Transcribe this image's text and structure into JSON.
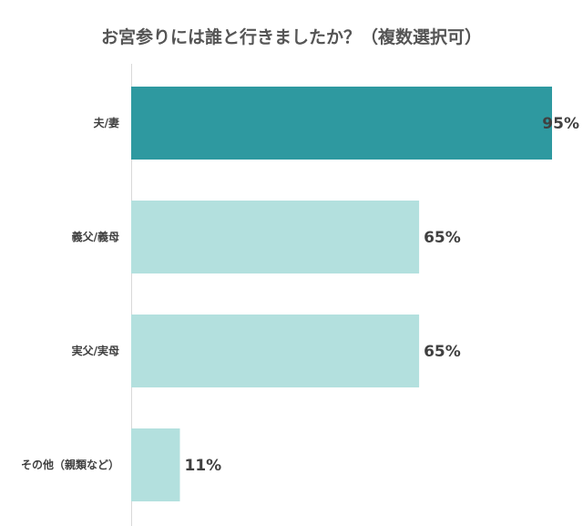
{
  "chart_data": {
    "type": "bar",
    "orientation": "horizontal",
    "title": "お宮参りには誰と行きましたか？（複数選択可）",
    "categories": [
      "夫/妻",
      "義父/義母",
      "実父/実母",
      "その他（親類など）"
    ],
    "values": [
      95,
      65,
      65,
      11
    ],
    "value_labels": [
      "95%",
      "65%",
      "65%",
      "11%"
    ],
    "xlim": [
      0,
      100
    ],
    "unit": "%",
    "grid": false,
    "legend": "none",
    "colors": {
      "highlight": "#2E99A0",
      "bar": "#B3E0DE",
      "axis": "#D9D9D9",
      "title": "#555555",
      "text": "#404040"
    }
  }
}
